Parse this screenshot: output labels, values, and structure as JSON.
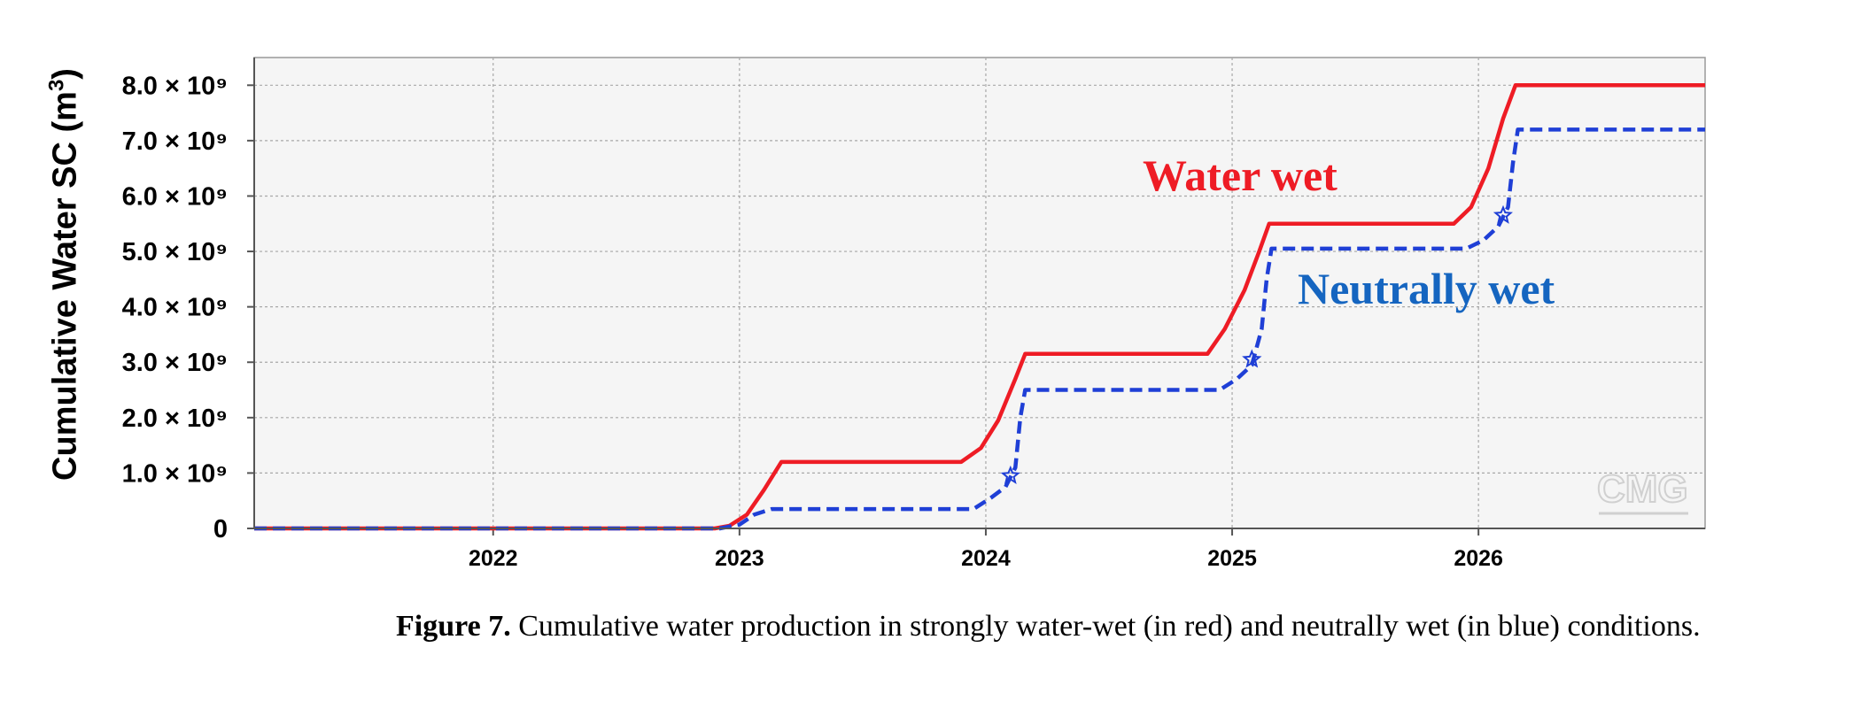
{
  "chart_data": {
    "type": "line",
    "ylabel": "Cumulative Water SC (m",
    "ylabel_sup": "3",
    "x_ticks": [
      "2022",
      "2023",
      "2024",
      "2025",
      "2026"
    ],
    "xlim": [
      2021.03,
      2026.92
    ],
    "ylim": [
      0,
      8500000000.0
    ],
    "y_ticks": [
      {
        "label": "0",
        "value": 0
      },
      {
        "label": "1.0 × 10⁹",
        "value": 1000000000.0
      },
      {
        "label": "2.0 × 10⁹",
        "value": 2000000000.0
      },
      {
        "label": "3.0 × 10⁹",
        "value": 3000000000.0
      },
      {
        "label": "4.0 × 10⁹",
        "value": 4000000000.0
      },
      {
        "label": "5.0 × 10⁹",
        "value": 5000000000.0
      },
      {
        "label": "6.0 × 10⁹",
        "value": 6000000000.0
      },
      {
        "label": "7.0 × 10⁹",
        "value": 7000000000.0
      },
      {
        "label": "8.0 × 10⁹",
        "value": 8000000000.0
      }
    ],
    "grid": true,
    "series": [
      {
        "name": "Water wet",
        "color": "#ee1c25",
        "dash": "solid",
        "points": [
          [
            2021.03,
            0
          ],
          [
            2022.9,
            0
          ],
          [
            2022.96,
            50000000.0
          ],
          [
            2023.03,
            250000000.0
          ],
          [
            2023.1,
            700000000.0
          ],
          [
            2023.17,
            1200000000.0
          ],
          [
            2023.9,
            1200000000.0
          ],
          [
            2023.98,
            1450000000.0
          ],
          [
            2024.05,
            1950000000.0
          ],
          [
            2024.12,
            2700000000.0
          ],
          [
            2024.16,
            3150000000.0
          ],
          [
            2024.9,
            3150000000.0
          ],
          [
            2024.97,
            3600000000.0
          ],
          [
            2025.05,
            4300000000.0
          ],
          [
            2025.11,
            5000000000.0
          ],
          [
            2025.15,
            5500000000.0
          ],
          [
            2025.9,
            5500000000.0
          ],
          [
            2025.97,
            5800000000.0
          ],
          [
            2026.04,
            6500000000.0
          ],
          [
            2026.1,
            7400000000.0
          ],
          [
            2026.15,
            8000000000.0
          ],
          [
            2026.92,
            8000000000.0
          ]
        ]
      },
      {
        "name": "Neutrally wet",
        "color": "#1f3fd6",
        "dash": "dashed",
        "points": [
          [
            2021.03,
            0
          ],
          [
            2022.92,
            0
          ],
          [
            2023.0,
            70000000.0
          ],
          [
            2023.06,
            250000000.0
          ],
          [
            2023.13,
            350000000.0
          ],
          [
            2023.95,
            350000000.0
          ],
          [
            2024.02,
            550000000.0
          ],
          [
            2024.08,
            750000000.0
          ],
          [
            2024.12,
            1100000000.0
          ],
          [
            2024.14,
            2000000000.0
          ],
          [
            2024.16,
            2500000000.0
          ],
          [
            2024.95,
            2500000000.0
          ],
          [
            2025.02,
            2700000000.0
          ],
          [
            2025.08,
            2950000000.0
          ],
          [
            2025.12,
            3600000000.0
          ],
          [
            2025.14,
            4500000000.0
          ],
          [
            2025.16,
            5050000000.0
          ],
          [
            2025.95,
            5050000000.0
          ],
          [
            2026.02,
            5200000000.0
          ],
          [
            2026.08,
            5450000000.0
          ],
          [
            2026.12,
            5800000000.0
          ],
          [
            2026.14,
            6600000000.0
          ],
          [
            2026.16,
            7200000000.0
          ],
          [
            2026.92,
            7200000000.0
          ]
        ],
        "markers": [
          [
            2024.1,
            950000000.0
          ],
          [
            2025.08,
            3050000000.0
          ],
          [
            2026.1,
            5650000000.0
          ]
        ]
      }
    ],
    "annotations": [
      {
        "text": "Water wet",
        "color": "#ee1c25"
      },
      {
        "text": "Neutrally wet",
        "color": "#1565c0"
      }
    ],
    "watermark": "CMG"
  },
  "caption": {
    "label": "Figure 7.",
    "text": " Cumulative water production in strongly water-wet (in red) and neutrally wet (in blue) conditions."
  }
}
